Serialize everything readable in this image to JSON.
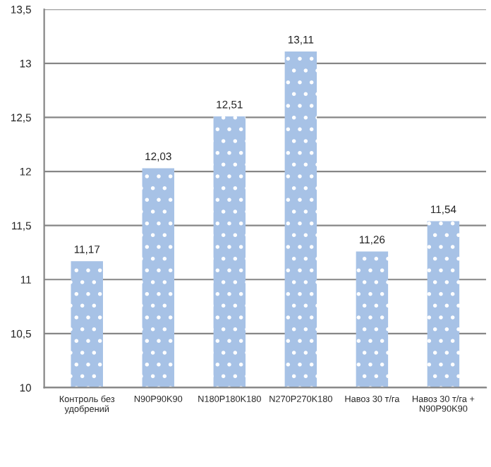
{
  "chart_data": {
    "type": "bar",
    "categories": [
      "Контроль без\nудобрений",
      "N90P90K90",
      "N180P180K180",
      "N270P270K180",
      "Навоз 30 т/га",
      "Навоз 30 т/га +\nN90P90K90"
    ],
    "values": [
      11.17,
      12.03,
      12.51,
      13.11,
      11.26,
      11.54
    ],
    "value_labels": [
      "11,17",
      "12,03",
      "12,51",
      "13,11",
      "11,26",
      "11,54"
    ],
    "color": "#a7c2e6",
    "ylim": [
      10,
      13.5
    ],
    "yticks": [
      10,
      {
        "value": 10.5,
        "label": "10,5"
      },
      11,
      {
        "value": 11.5,
        "label": "11,5"
      },
      12,
      {
        "value": 12.5,
        "label": "12,5"
      },
      13,
      {
        "value": 13.5,
        "label": "13,5"
      }
    ],
    "grid": "y",
    "legend": false
  }
}
